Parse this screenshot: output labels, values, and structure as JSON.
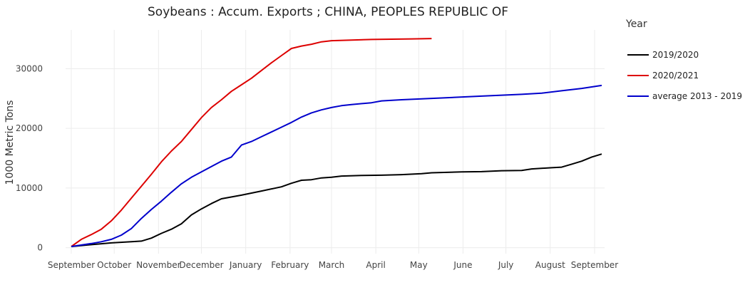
{
  "chart_data": {
    "type": "line",
    "title": "Soybeans :  Accum. Exports ;  CHINA, PEOPLES REPUBLIC OF",
    "xlabel": "",
    "ylabel": "1000 Metric Tons",
    "x_ticks": [
      "September",
      "October",
      "November",
      "December",
      "January",
      "February",
      "March",
      "April",
      "May",
      "June",
      "July",
      "August",
      "September"
    ],
    "xlim": [
      "2019-08-28",
      "2020-09-08"
    ],
    "y_ticks": [
      0,
      10000,
      20000,
      30000
    ],
    "ylim": [
      -1000,
      36500
    ],
    "grid": true,
    "legend_title": "Year",
    "legend_position": "right",
    "series": [
      {
        "name": "2019/2020",
        "color": "#000000",
        "points": [
          [
            "2019-09-01",
            200
          ],
          [
            "2019-09-15",
            500
          ],
          [
            "2019-09-29",
            800
          ],
          [
            "2019-10-13",
            1000
          ],
          [
            "2019-10-20",
            1100
          ],
          [
            "2019-10-27",
            1600
          ],
          [
            "2019-11-03",
            2400
          ],
          [
            "2019-11-10",
            3100
          ],
          [
            "2019-11-17",
            4000
          ],
          [
            "2019-11-24",
            5500
          ],
          [
            "2019-12-01",
            6500
          ],
          [
            "2019-12-08",
            7400
          ],
          [
            "2019-12-15",
            8200
          ],
          [
            "2019-12-29",
            8800
          ],
          [
            "2020-01-12",
            9500
          ],
          [
            "2020-01-26",
            10200
          ],
          [
            "2020-02-02",
            10800
          ],
          [
            "2020-02-09",
            11300
          ],
          [
            "2020-02-16",
            11400
          ],
          [
            "2020-02-23",
            11700
          ],
          [
            "2020-03-01",
            11800
          ],
          [
            "2020-03-08",
            12000
          ],
          [
            "2020-03-22",
            12100
          ],
          [
            "2020-04-05",
            12150
          ],
          [
            "2020-04-19",
            12250
          ],
          [
            "2020-05-03",
            12400
          ],
          [
            "2020-05-10",
            12550
          ],
          [
            "2020-05-31",
            12700
          ],
          [
            "2020-06-14",
            12750
          ],
          [
            "2020-06-28",
            12900
          ],
          [
            "2020-07-12",
            12950
          ],
          [
            "2020-07-19",
            13200
          ],
          [
            "2020-08-02",
            13400
          ],
          [
            "2020-08-09",
            13500
          ],
          [
            "2020-08-16",
            14000
          ],
          [
            "2020-08-23",
            14500
          ],
          [
            "2020-08-30",
            15200
          ],
          [
            "2020-09-06",
            15700
          ]
        ]
      },
      {
        "name": "2020/2021",
        "color": "#dd0000",
        "points": [
          [
            "2019-09-01",
            200
          ],
          [
            "2019-09-08",
            1400
          ],
          [
            "2019-09-15",
            2200
          ],
          [
            "2019-09-22",
            3100
          ],
          [
            "2019-09-29",
            4500
          ],
          [
            "2019-10-06",
            6300
          ],
          [
            "2019-10-13",
            8300
          ],
          [
            "2019-10-20",
            10300
          ],
          [
            "2019-10-27",
            12300
          ],
          [
            "2019-11-03",
            14400
          ],
          [
            "2019-11-10",
            16200
          ],
          [
            "2019-11-17",
            17800
          ],
          [
            "2019-11-24",
            19800
          ],
          [
            "2019-12-01",
            21800
          ],
          [
            "2019-12-08",
            23500
          ],
          [
            "2019-12-15",
            24800
          ],
          [
            "2019-12-22",
            26200
          ],
          [
            "2019-12-29",
            27300
          ],
          [
            "2020-01-05",
            28400
          ],
          [
            "2020-01-12",
            29700
          ],
          [
            "2020-01-19",
            31000
          ],
          [
            "2020-01-26",
            32200
          ],
          [
            "2020-02-02",
            33400
          ],
          [
            "2020-02-09",
            33800
          ],
          [
            "2020-02-16",
            34100
          ],
          [
            "2020-02-23",
            34500
          ],
          [
            "2020-03-01",
            34700
          ],
          [
            "2020-03-15",
            34800
          ],
          [
            "2020-03-29",
            34900
          ],
          [
            "2020-04-12",
            34950
          ],
          [
            "2020-04-26",
            35000
          ],
          [
            "2020-05-10",
            35050
          ]
        ]
      },
      {
        "name": "average 2013 - 2019",
        "color": "#0000cc",
        "points": [
          [
            "2019-09-01",
            200
          ],
          [
            "2019-09-15",
            700
          ],
          [
            "2019-09-22",
            1000
          ],
          [
            "2019-09-29",
            1400
          ],
          [
            "2019-10-06",
            2100
          ],
          [
            "2019-10-13",
            3200
          ],
          [
            "2019-10-20",
            4900
          ],
          [
            "2019-10-27",
            6400
          ],
          [
            "2019-11-03",
            7800
          ],
          [
            "2019-11-10",
            9300
          ],
          [
            "2019-11-17",
            10700
          ],
          [
            "2019-11-24",
            11800
          ],
          [
            "2019-12-01",
            12700
          ],
          [
            "2019-12-08",
            13600
          ],
          [
            "2019-12-15",
            14500
          ],
          [
            "2019-12-22",
            15200
          ],
          [
            "2019-12-29",
            17200
          ],
          [
            "2020-01-05",
            17800
          ],
          [
            "2020-01-12",
            18600
          ],
          [
            "2020-01-19",
            19400
          ],
          [
            "2020-01-26",
            20200
          ],
          [
            "2020-02-02",
            21000
          ],
          [
            "2020-02-09",
            21900
          ],
          [
            "2020-02-16",
            22600
          ],
          [
            "2020-02-23",
            23100
          ],
          [
            "2020-03-01",
            23500
          ],
          [
            "2020-03-08",
            23800
          ],
          [
            "2020-03-15",
            24000
          ],
          [
            "2020-03-29",
            24300
          ],
          [
            "2020-04-05",
            24600
          ],
          [
            "2020-04-19",
            24800
          ],
          [
            "2020-05-17",
            25100
          ],
          [
            "2020-06-14",
            25400
          ],
          [
            "2020-07-12",
            25700
          ],
          [
            "2020-07-26",
            25900
          ],
          [
            "2020-08-09",
            26300
          ],
          [
            "2020-08-23",
            26700
          ],
          [
            "2020-09-06",
            27200
          ]
        ]
      }
    ]
  }
}
